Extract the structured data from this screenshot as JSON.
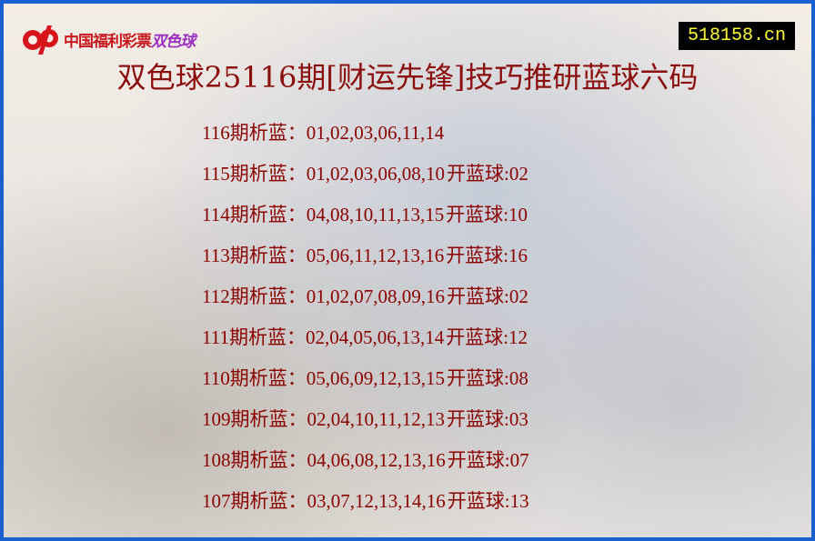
{
  "logo": {
    "text_main": "中国福利彩票",
    "text_game": "双色球"
  },
  "site_badge": "518158.cn",
  "title": "双色球25116期[财运先锋]技巧推研蓝球六码",
  "rows": [
    {
      "period": "116期析蓝：",
      "numbers": "01,02,03,06,11,14",
      "draw": ""
    },
    {
      "period": "115期析蓝：",
      "numbers": "01,02,03,06,08,10",
      "draw": "开蓝球:02"
    },
    {
      "period": "114期析蓝：",
      "numbers": "04,08,10,11,13,15",
      "draw": "开蓝球:10"
    },
    {
      "period": "113期析蓝：",
      "numbers": "05,06,11,12,13,16",
      "draw": "开蓝球:16"
    },
    {
      "period": "112期析蓝：",
      "numbers": "01,02,07,08,09,16",
      "draw": "开蓝球:02"
    },
    {
      "period": "111期析蓝：",
      "numbers": "02,04,05,06,13,14",
      "draw": "开蓝球:12"
    },
    {
      "period": "110期析蓝：",
      "numbers": "05,06,09,12,13,15",
      "draw": "开蓝球:08"
    },
    {
      "period": "109期析蓝：",
      "numbers": "02,04,10,11,12,13",
      "draw": "开蓝球:03"
    },
    {
      "period": "108期析蓝：",
      "numbers": "04,06,08,12,13,16",
      "draw": "开蓝球:07"
    },
    {
      "period": "107期析蓝：",
      "numbers": "03,07,12,13,14,16",
      "draw": "开蓝球:13"
    }
  ],
  "colors": {
    "border": "#1a5fd0",
    "text": "#8b0000",
    "badge_bg": "#000000",
    "badge_text": "#ffff33"
  }
}
